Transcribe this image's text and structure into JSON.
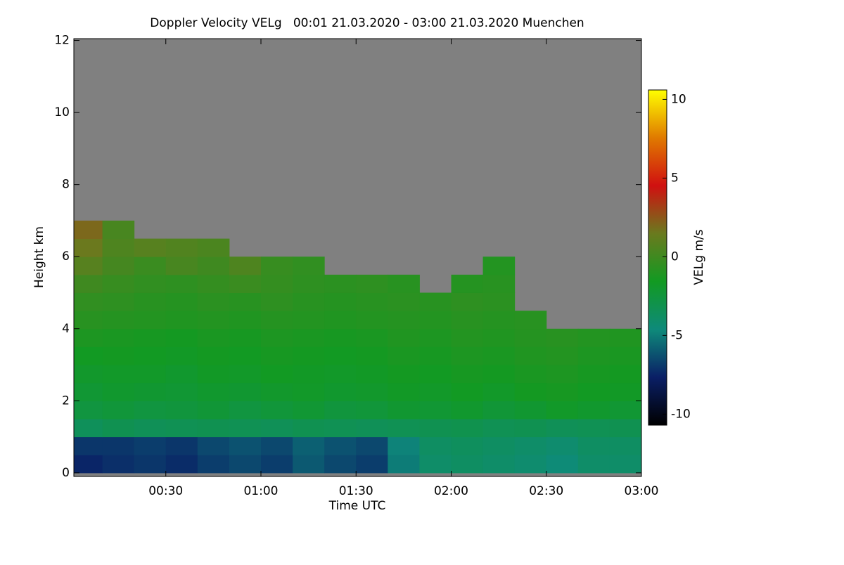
{
  "chart_data": {
    "type": "heatmap",
    "title": "Doppler Velocity VELg   00:01 21.03.2020 - 03:00 21.03.2020 Muenchen",
    "x_label": "Time UTC",
    "y_label": "Height km",
    "colorbar_label": "VELg m/s",
    "x": [
      5,
      15,
      25,
      35,
      45,
      55,
      65,
      75,
      85,
      95,
      105,
      115,
      125,
      135,
      145,
      155,
      165,
      175
    ],
    "y": [
      0.25,
      0.75,
      1.25,
      1.75,
      2.25,
      2.75,
      3.25,
      3.75,
      4.25,
      4.75,
      5.25,
      5.75,
      6.25,
      6.75
    ],
    "values": [
      [
        -7.5,
        -7.2,
        -7,
        -7.3,
        -6.8,
        -6.5,
        -6.8,
        -6,
        -6.5,
        -6.8,
        -5,
        -4,
        -3.8,
        -4,
        -4.2,
        -4.5,
        -4,
        -4
      ],
      [
        -7,
        -7,
        -6.8,
        -7,
        -6.5,
        -6.2,
        -6.5,
        -5.8,
        -6.2,
        -6.5,
        -4.8,
        -3.8,
        -3.6,
        -3.8,
        -4,
        -4.2,
        -3.8,
        -3.8
      ],
      [
        -3.5,
        -3.2,
        -3.4,
        -3.3,
        -3.2,
        -3.3,
        -3.4,
        -3.2,
        -3.3,
        -3.4,
        -3.3,
        -3.2,
        -3.1,
        -3.3,
        -3.2,
        -3.4,
        -3.3,
        -3.2
      ],
      [
        -2.6,
        -2.4,
        -2.6,
        -2.5,
        -2.3,
        -2.6,
        -2.4,
        -2.2,
        -2.5,
        -2.4,
        -2.1,
        -2.2,
        -2,
        -2.3,
        -2.1,
        -1.8,
        -2,
        -2.2
      ],
      [
        -2.2,
        -2,
        -2.1,
        -2.2,
        -2,
        -2.1,
        -1.9,
        -1.8,
        -2,
        -1.9,
        -1.7,
        -1.8,
        -1.6,
        -1.8,
        -1.5,
        -1.4,
        -1.6,
        -1.7
      ],
      [
        -1.9,
        -1.8,
        -1.8,
        -2,
        -1.7,
        -1.8,
        -1.6,
        -1.7,
        -1.8,
        -1.7,
        -1.5,
        -1.6,
        -1.4,
        -1.5,
        -1.3,
        -1.2,
        -1.4,
        -1.5
      ],
      [
        -1.6,
        -1.5,
        -1.6,
        -1.7,
        -1.5,
        -1.6,
        -1.4,
        -1.5,
        -1.6,
        -1.5,
        -1.3,
        -1.4,
        -1.2,
        -1.3,
        -1.1,
        -1,
        -1.2,
        -1.3
      ],
      [
        -1.2,
        -1.3,
        -1.4,
        -1.5,
        -1.3,
        -1.4,
        -1.2,
        -1.3,
        -1.4,
        -1.3,
        -1.1,
        -1.2,
        -1,
        -1.1,
        -0.9,
        -0.8,
        -1,
        -1.1
      ],
      [
        -0.8,
        -0.9,
        -1,
        -1.1,
        -1,
        -1.1,
        -0.9,
        -1,
        -1.1,
        -1,
        -0.9,
        -1,
        -0.8,
        -0.9,
        -0.8,
        null,
        null,
        null
      ],
      [
        -0.5,
        -0.6,
        -0.8,
        -0.9,
        -0.7,
        -0.8,
        -0.6,
        -0.8,
        -0.9,
        -0.8,
        -0.7,
        -0.8,
        -0.6,
        -0.7,
        null,
        null,
        null,
        null
      ],
      [
        0,
        -0.3,
        -0.5,
        -0.6,
        -0.4,
        -0.2,
        -0.4,
        -0.6,
        -0.7,
        -0.6,
        -0.8,
        null,
        -0.9,
        -0.8,
        null,
        null,
        null,
        null
      ],
      [
        0.8,
        0.2,
        -0.2,
        0.3,
        0,
        0.5,
        -0.3,
        -0.5,
        null,
        null,
        null,
        null,
        null,
        -1,
        null,
        null,
        null,
        null
      ],
      [
        1.5,
        0.5,
        0.8,
        0.6,
        0.4,
        null,
        null,
        null,
        null,
        null,
        null,
        null,
        null,
        null,
        null,
        null,
        null,
        null
      ],
      [
        2,
        0.3,
        null,
        null,
        null,
        null,
        null,
        null,
        null,
        null,
        null,
        null,
        null,
        null,
        null,
        null,
        null,
        null
      ]
    ],
    "xlim": [
      1,
      180
    ],
    "xticks": [
      {
        "value": 30,
        "label": "00:30"
      },
      {
        "value": 60,
        "label": "01:00"
      },
      {
        "value": 90,
        "label": "01:30"
      },
      {
        "value": 120,
        "label": "02:00"
      },
      {
        "value": 150,
        "label": "02:30"
      },
      {
        "value": 180,
        "label": "03:00"
      }
    ],
    "ylim": [
      -0.1,
      12.05
    ],
    "yticks": [
      0,
      2,
      4,
      6,
      8,
      10,
      12
    ],
    "clim": [
      -10.7,
      10.6
    ],
    "cticks": [
      -10,
      -5,
      0,
      5,
      10
    ],
    "colormap": [
      "#000000",
      "#0a1f66",
      "#0e8a7a",
      "#129a22",
      "#6a7a1e",
      "#d01010",
      "#e07a00",
      "#ffff00"
    ],
    "nodata_color": "#808080"
  }
}
